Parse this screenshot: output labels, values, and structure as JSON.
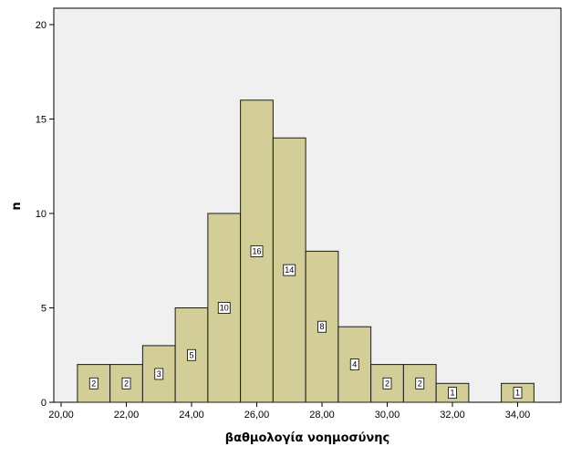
{
  "chart_data": {
    "type": "bar",
    "histogram": true,
    "categories": [
      "21,00",
      "22,00",
      "23,00",
      "24,00",
      "25,00",
      "26,00",
      "27,00",
      "28,00",
      "29,00",
      "30,00",
      "31,00",
      "32,00",
      "33,00",
      "34,00"
    ],
    "x": [
      21,
      22,
      23,
      24,
      25,
      26,
      27,
      28,
      29,
      30,
      31,
      32,
      33,
      34
    ],
    "values": [
      2,
      2,
      3,
      5,
      10,
      16,
      14,
      8,
      4,
      2,
      2,
      1,
      0,
      1
    ],
    "data_labels": [
      "2",
      "2",
      "3",
      "5",
      "10",
      "16",
      "14",
      "8",
      "4",
      "2",
      "2",
      "1",
      "",
      "1"
    ],
    "bin_width": 1,
    "title": "",
    "xlabel": "βαθμολογία νοημοσύνης",
    "ylabel": "n",
    "xlim": [
      20,
      35
    ],
    "ylim": [
      0,
      20
    ],
    "x_ticks": [
      20,
      22,
      24,
      26,
      28,
      30,
      32,
      34
    ],
    "x_tick_labels": [
      "20,00",
      "22,00",
      "24,00",
      "26,00",
      "28,00",
      "30,00",
      "32,00",
      "34,00"
    ],
    "y_ticks": [
      0,
      5,
      10,
      15,
      20
    ],
    "y_tick_labels": [
      "0",
      "5",
      "10",
      "15",
      "20"
    ],
    "grid": false,
    "legend": "none",
    "colors": {
      "bar_fill": "#d3ce98",
      "bar_stroke": "#1a1a1a",
      "plot_background": "#f0f0f0",
      "page_background": "#ffffff",
      "axis": "#000000"
    }
  }
}
